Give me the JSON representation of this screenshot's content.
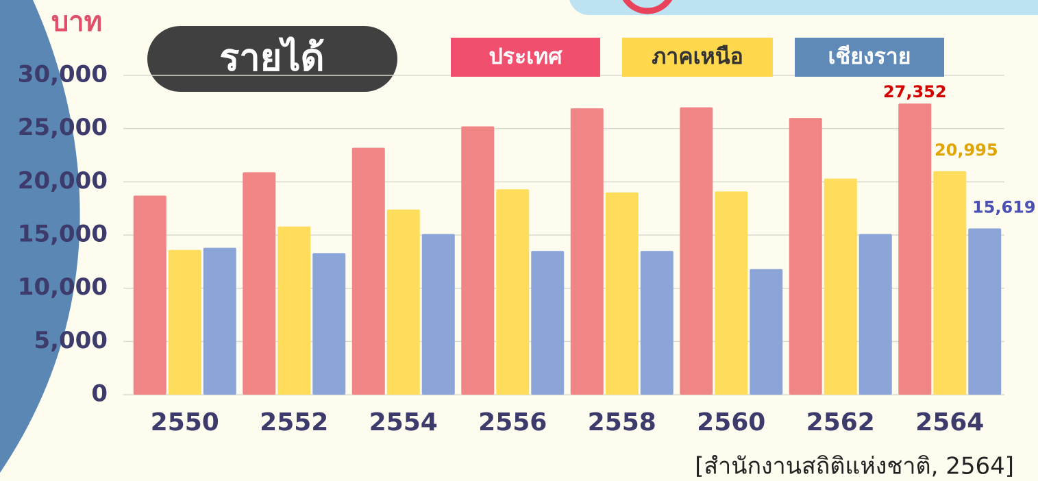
{
  "chart_data": {
    "type": "bar",
    "title": "รายได้",
    "y_axis_label": "บาท",
    "source": "[สำนักงานสถิติแห่งชาติ, 2564]",
    "categories": [
      "2550",
      "2552",
      "2554",
      "2556",
      "2558",
      "2560",
      "2562",
      "2564"
    ],
    "series": [
      {
        "name": "ประเทศ",
        "color": "#f08585",
        "legend_color": "#f0506e",
        "label_color": "#d40000",
        "values": [
          18700,
          20900,
          23200,
          25200,
          26900,
          27000,
          26000,
          27352
        ],
        "value_labels": [
          null,
          null,
          null,
          null,
          null,
          null,
          null,
          "27,352"
        ]
      },
      {
        "name": "ภาคเหนือ",
        "color": "#ffdd5c",
        "legend_color": "#ffd84d",
        "label_color": "#e0a400",
        "values": [
          13600,
          15800,
          17400,
          19300,
          19000,
          19100,
          20300,
          20995
        ],
        "value_labels": [
          null,
          null,
          null,
          null,
          null,
          null,
          null,
          "20,995"
        ]
      },
      {
        "name": "เชียงราย",
        "color": "#8ba5d8",
        "legend_color": "#5f8ab8",
        "label_color": "#4a50b4",
        "values": [
          13800,
          13300,
          15100,
          13500,
          13500,
          11800,
          15100,
          15619
        ],
        "value_labels": [
          null,
          null,
          null,
          null,
          null,
          null,
          null,
          "15,619"
        ]
      }
    ],
    "ylim": [
      0,
      30000
    ],
    "yticks": [
      0,
      {
        "value": 5000,
        "label": "5,000"
      },
      {
        "value": 10000,
        "label": "10,000"
      },
      {
        "value": 15000,
        "label": "15,000"
      },
      {
        "value": 20000,
        "label": "20,000"
      },
      {
        "value": 25000,
        "label": "25,000"
      },
      {
        "value": 30000,
        "label": "30,000"
      }
    ],
    "grid": true
  }
}
